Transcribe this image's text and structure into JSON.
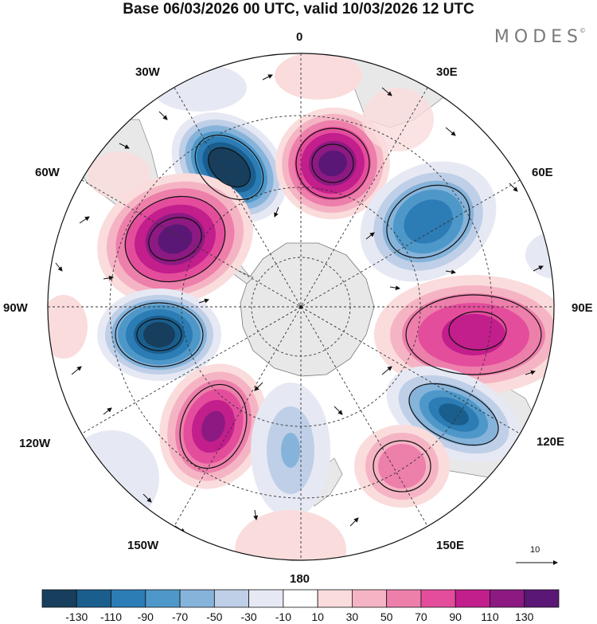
{
  "title": "Base 06/03/2026 00 UTC, valid 10/03/2026 12 UTC",
  "brand": "MODES",
  "brand_mark": "©",
  "longitude_labels": {
    "lon0": "0",
    "lon30e": "30E",
    "lon60e": "60E",
    "lon90e": "90E",
    "lon120e": "120E",
    "lon150e": "150E",
    "lon180": "180",
    "lon150w": "150W",
    "lon120w": "120W",
    "lon90w": "90W",
    "lon60w": "60W",
    "lon30w": "30W"
  },
  "colorbar": {
    "labels": [
      "-130",
      "-110",
      "-90",
      "-70",
      "-50",
      "-30",
      "-10",
      "10",
      "30",
      "50",
      "70",
      "90",
      "110",
      "130"
    ],
    "colors": [
      "#173e5c",
      "#1a5e8e",
      "#2c7cb5",
      "#4e98c9",
      "#86b3da",
      "#bfcfe7",
      "#e6e9f3",
      "#ffffff",
      "#fadcdc",
      "#f5b4c4",
      "#ed7fab",
      "#e44d9c",
      "#c21e8c",
      "#8c1a82",
      "#5b1775"
    ]
  },
  "reference_vector": {
    "label": "10"
  },
  "map": {
    "land_color": "#e8e8e8",
    "anomalies": [
      {
        "id": "cyclone-30w",
        "value": -130
      },
      {
        "id": "anticyclone-0",
        "value": 130
      },
      {
        "id": "cyclone-50e",
        "value": -90
      },
      {
        "id": "anticyclone-60w",
        "value": 130
      },
      {
        "id": "cyclone-90w",
        "value": -130
      },
      {
        "id": "anticyclone-90e",
        "value": 110
      },
      {
        "id": "anticyclone-130w",
        "value": 110
      },
      {
        "id": "cyclone-120e",
        "value": -110
      },
      {
        "id": "anticyclone-145e",
        "value": 70
      },
      {
        "id": "cyclone-170w",
        "value": -50
      },
      {
        "id": "anticyclone-180",
        "value": 30
      },
      {
        "id": "anticyclone-90w-outer",
        "value": 30
      }
    ]
  }
}
